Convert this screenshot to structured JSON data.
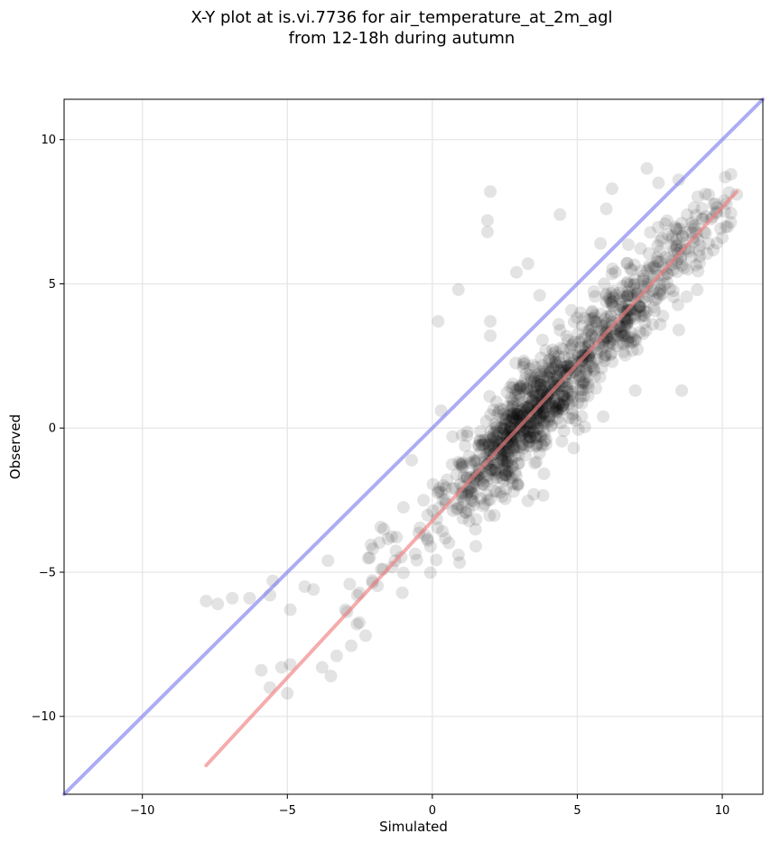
{
  "chart_data": {
    "type": "scatter",
    "title_lines": [
      "X-Y plot at is.vi.7736 for air_temperature_at_2m_agl",
      "from 12-18h during autumn"
    ],
    "xlabel": "Simulated",
    "ylabel": "Observed",
    "xlim": [
      -12.7,
      11.4
    ],
    "ylim": [
      -12.7,
      11.4
    ],
    "xticks": [
      -10,
      -5,
      0,
      5,
      10
    ],
    "yticks": [
      -10,
      -5,
      0,
      5,
      10
    ],
    "xtick_labels": [
      "−10",
      "−5",
      "0",
      "5",
      "10"
    ],
    "ytick_labels": [
      "−10",
      "−5",
      "0",
      "5",
      "10"
    ],
    "grid": true,
    "colors": {
      "points": "#000000",
      "identity_line": "#7f7ff0",
      "fit_line": "#f07f80"
    },
    "identity_line": {
      "x": [
        -12.7,
        11.4
      ],
      "y": [
        -12.7,
        11.4
      ]
    },
    "fit_line": {
      "x": [
        -7.8,
        10.5
      ],
      "y": [
        -11.7,
        8.2
      ]
    },
    "outlier_points": [
      {
        "x": -7.8,
        "y": -6.0
      },
      {
        "x": -7.4,
        "y": -6.1
      },
      {
        "x": -6.9,
        "y": -5.9
      },
      {
        "x": -6.3,
        "y": -5.9
      },
      {
        "x": -5.6,
        "y": -5.8
      },
      {
        "x": -5.5,
        "y": -5.3
      },
      {
        "x": -5.6,
        "y": -9.0
      },
      {
        "x": -5.9,
        "y": -8.4
      },
      {
        "x": -5.2,
        "y": -8.3
      },
      {
        "x": -5.0,
        "y": -9.2
      },
      {
        "x": -4.9,
        "y": -8.2
      },
      {
        "x": -4.9,
        "y": -6.3
      },
      {
        "x": -4.4,
        "y": -5.5
      },
      {
        "x": -4.1,
        "y": -5.6
      },
      {
        "x": -3.6,
        "y": -4.6
      },
      {
        "x": -3.8,
        "y": -8.3
      },
      {
        "x": -3.5,
        "y": -8.6
      },
      {
        "x": -3.3,
        "y": -7.9
      },
      {
        "x": -3.0,
        "y": -6.3
      },
      {
        "x": -2.6,
        "y": -6.8
      },
      {
        "x": -2.3,
        "y": -7.2
      },
      {
        "x": 0.2,
        "y": 3.7
      },
      {
        "x": 0.9,
        "y": 4.8
      },
      {
        "x": 1.9,
        "y": 7.2
      },
      {
        "x": 1.9,
        "y": 6.8
      },
      {
        "x": 2.0,
        "y": 8.2
      },
      {
        "x": 2.0,
        "y": 3.7
      },
      {
        "x": 2.0,
        "y": 3.2
      },
      {
        "x": 2.9,
        "y": 5.4
      },
      {
        "x": 4.4,
        "y": 7.4
      },
      {
        "x": 7.4,
        "y": 9.0
      },
      {
        "x": 7.8,
        "y": 8.5
      },
      {
        "x": 8.6,
        "y": 1.3
      },
      {
        "x": 7.0,
        "y": 1.3
      },
      {
        "x": 3.3,
        "y": 5.7
      },
      {
        "x": 3.7,
        "y": 4.6
      },
      {
        "x": 6.2,
        "y": 8.3
      },
      {
        "x": 6.0,
        "y": 7.6
      },
      {
        "x": 5.8,
        "y": 6.4
      },
      {
        "x": 10.1,
        "y": 8.7
      },
      {
        "x": 10.3,
        "y": 8.8
      },
      {
        "x": 10.5,
        "y": 8.1
      },
      {
        "x": 10.0,
        "y": 6.6
      },
      {
        "x": 9.8,
        "y": 7.5
      },
      {
        "x": 3.5,
        "y": -2.3
      },
      {
        "x": 2.8,
        "y": -2.2
      },
      {
        "x": 1.5,
        "y": -4.1
      },
      {
        "x": 0.9,
        "y": -4.4
      },
      {
        "x": 0.3,
        "y": 0.6
      },
      {
        "x": 0.7,
        "y": -0.3
      },
      {
        "x": 8.5,
        "y": 3.4
      }
    ],
    "bulk_cloud": {
      "n_points": 1150,
      "x_range": [
        -3.0,
        10.3
      ],
      "relation_to_x": {
        "slope": 1.087,
        "intercept": -3.22
      },
      "scatter_sd": 1.0
    }
  }
}
